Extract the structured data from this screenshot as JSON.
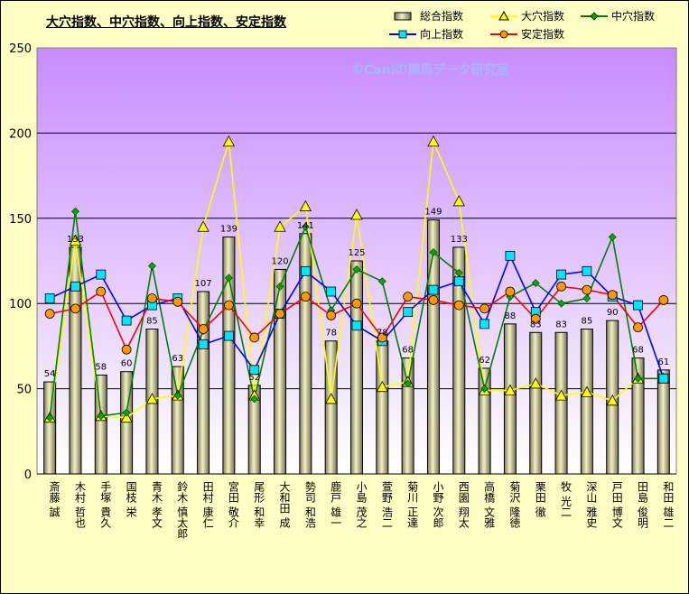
{
  "chart_data": {
    "type": "bar",
    "title": "大穴指数、中穴指数、向上指数、安定指数",
    "watermark": "©Caniの競馬データ研究室",
    "ylim": [
      0,
      250
    ],
    "yticks": [
      "0",
      "50",
      "100",
      "150",
      "200",
      "250"
    ],
    "grid": "horizontal",
    "legend_position": "top-right",
    "categories": [
      "斎藤 誠",
      "木村 哲也",
      "手塚 貴久",
      "国枝 栄",
      "青木 孝文",
      "鈴木 慎太郎",
      "田村 康仁",
      "宮田 敬介",
      "尾形 和幸",
      "大和田 成",
      "勢司 和浩",
      "鹿戸 雄一",
      "小島 茂之",
      "萱野 浩二",
      "菊川 正達",
      "小野 次郎",
      "西園 翔太",
      "高橋 文雅",
      "菊沢 隆徳",
      "栗田 徹",
      "牧 光二",
      "深山 雅史",
      "戸田 博文",
      "田島 俊明",
      "和田 雄二"
    ],
    "series": [
      {
        "name": "総合指数",
        "type": "bar",
        "color": "#ece8b4",
        "values": [
          54,
          133,
          58,
          60,
          85,
          63,
          107,
          139,
          52,
          120,
          141,
          78,
          125,
          78,
          68,
          149,
          133,
          62,
          88,
          83,
          83,
          85,
          90,
          68,
          61
        ]
      },
      {
        "name": "大穴指数",
        "type": "line",
        "color": "#ffff00",
        "marker": "triangle",
        "values": [
          33,
          137,
          34,
          33,
          44,
          46,
          145,
          195,
          46,
          145,
          157,
          44,
          152,
          51,
          54,
          195,
          160,
          49,
          49,
          53,
          46,
          48,
          43,
          56,
          56
        ]
      },
      {
        "name": "中穴指数",
        "type": "line",
        "color": "#008000",
        "marker": "diamond",
        "values": [
          33,
          154,
          34,
          36,
          122,
          46,
          84,
          115,
          44,
          110,
          145,
          96,
          120,
          113,
          53,
          130,
          118,
          50,
          104,
          112,
          100,
          103,
          139,
          56,
          56
        ]
      },
      {
        "name": "向上指数",
        "type": "line",
        "color": "#0000ff",
        "marker": "square",
        "values": [
          103,
          110,
          117,
          90,
          99,
          103,
          76,
          81,
          61,
          94,
          119,
          107,
          87,
          78,
          95,
          108,
          113,
          88,
          128,
          95,
          117,
          119,
          104,
          99,
          56
        ]
      },
      {
        "name": "安定指数",
        "type": "line",
        "color": "#ff0000",
        "marker": "circle",
        "values": [
          94,
          97,
          107,
          73,
          103,
          101,
          85,
          99,
          80,
          94,
          104,
          93,
          100,
          80,
          104,
          102,
          99,
          97,
          107,
          91,
          110,
          108,
          105,
          86,
          102
        ]
      }
    ]
  }
}
